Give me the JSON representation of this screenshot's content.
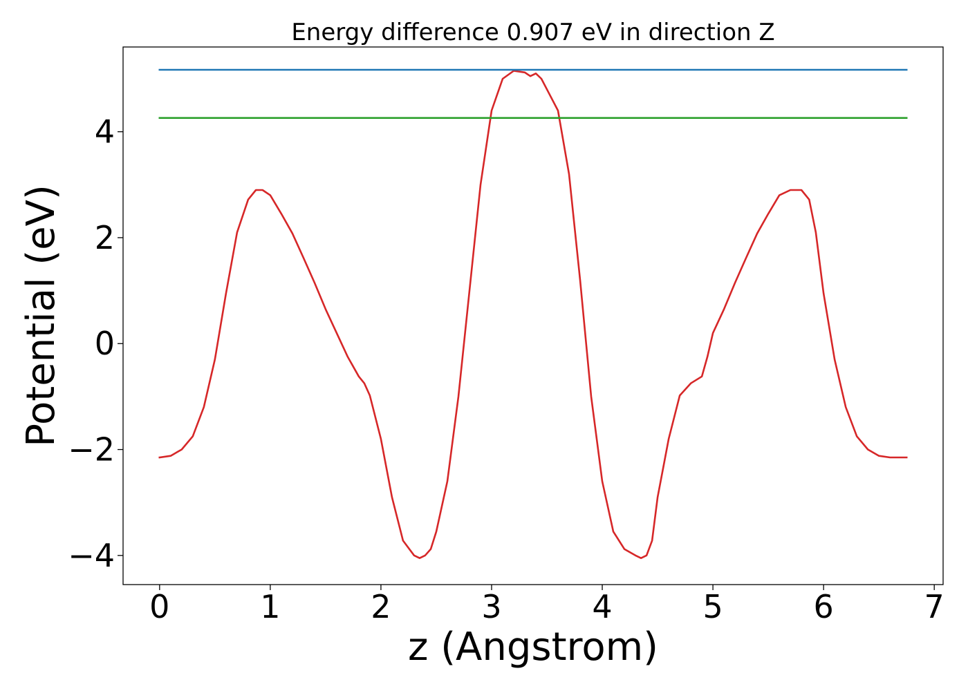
{
  "chart_data": {
    "type": "line",
    "title": "Energy difference 0.907 eV in direction Z",
    "xlabel": "z (Angstrom)",
    "ylabel": "Potential (eV)",
    "xlim": [
      -0.33,
      7.08
    ],
    "ylim": [
      -4.55,
      5.6
    ],
    "xticks": [
      0,
      1,
      2,
      3,
      4,
      5,
      6,
      7
    ],
    "xtick_labels": [
      "0",
      "1",
      "2",
      "3",
      "4",
      "5",
      "6",
      "7"
    ],
    "yticks": [
      -4,
      -2,
      0,
      2,
      4
    ],
    "ytick_labels": [
      "−4",
      "−2",
      "0",
      "2",
      "4"
    ],
    "grid": false,
    "legend": "none",
    "series": [
      {
        "color": "#d62728",
        "x": [
          0.0,
          0.1,
          0.2,
          0.3,
          0.4,
          0.5,
          0.6,
          0.7,
          0.8,
          0.87,
          0.93,
          1.0,
          1.1,
          1.2,
          1.3,
          1.4,
          1.5,
          1.6,
          1.7,
          1.8,
          1.85,
          1.9,
          2.0,
          2.1,
          2.2,
          2.3,
          2.35,
          2.4,
          2.45,
          2.5,
          2.6,
          2.7,
          2.8,
          2.9,
          3.0,
          3.1,
          3.2,
          3.3,
          3.35,
          3.4,
          3.45,
          3.5,
          3.6,
          3.7,
          3.8,
          3.9,
          4.0,
          4.1,
          4.2,
          4.3,
          4.35,
          4.4,
          4.45,
          4.5,
          4.6,
          4.7,
          4.8,
          4.9,
          4.95,
          5.0,
          5.1,
          5.2,
          5.3,
          5.4,
          5.5,
          5.6,
          5.7,
          5.8,
          5.87,
          5.93,
          6.0,
          6.1,
          6.2,
          6.3,
          6.4,
          6.5,
          6.6,
          6.7,
          6.75
        ],
        "y": [
          -2.15,
          -2.12,
          -2.0,
          -1.75,
          -1.2,
          -0.3,
          0.95,
          2.1,
          2.72,
          2.9,
          2.9,
          2.8,
          2.45,
          2.08,
          1.62,
          1.15,
          0.65,
          0.2,
          -0.25,
          -0.62,
          -0.75,
          -0.98,
          -1.8,
          -2.9,
          -3.72,
          -4.0,
          -4.05,
          -4.0,
          -3.88,
          -3.55,
          -2.6,
          -1.0,
          1.0,
          3.0,
          4.4,
          5.0,
          5.15,
          5.12,
          5.05,
          5.1,
          5.0,
          4.8,
          4.4,
          3.2,
          1.2,
          -1.0,
          -2.6,
          -3.55,
          -3.88,
          -4.0,
          -4.05,
          -4.0,
          -3.72,
          -2.9,
          -1.8,
          -0.98,
          -0.75,
          -0.62,
          -0.25,
          0.2,
          0.65,
          1.15,
          1.62,
          2.08,
          2.45,
          2.8,
          2.9,
          2.9,
          2.72,
          2.1,
          0.95,
          -0.3,
          -1.2,
          -1.75,
          -2.0,
          -2.12,
          -2.15,
          -2.15,
          -2.15
        ]
      },
      {
        "color": "#1f77b4",
        "x": [
          0.0,
          6.75
        ],
        "y": [
          5.17,
          5.17
        ]
      },
      {
        "color": "#2ca02c",
        "x": [
          0.0,
          6.75
        ],
        "y": [
          4.26,
          4.26
        ]
      }
    ]
  }
}
